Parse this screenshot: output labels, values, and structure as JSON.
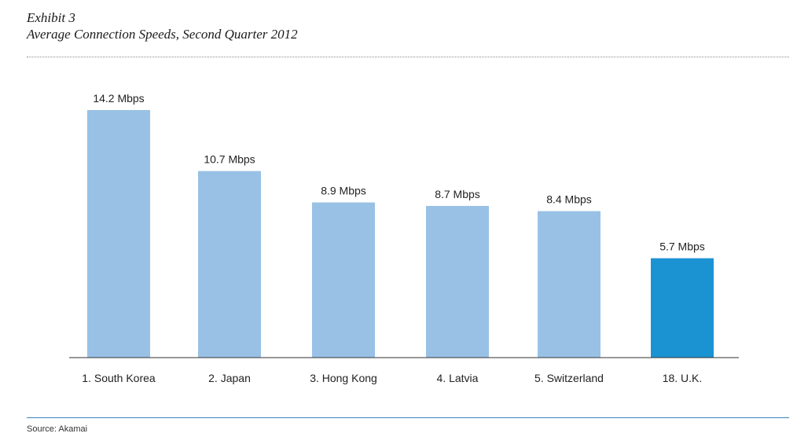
{
  "header": {
    "exhibit": "Exhibit 3",
    "title": "Average Connection Speeds, Second Quarter 2012"
  },
  "footer": {
    "source": "Source: Akamai"
  },
  "colors": {
    "default_bar": "#99c1e6",
    "highlight_bar": "#1b93d2",
    "axis": "#333333"
  },
  "chart_data": {
    "type": "bar",
    "title": "Average Connection Speeds, Second Quarter 2012",
    "xlabel": "",
    "ylabel": "",
    "unit": "Mbps",
    "categories": [
      "1. South Korea",
      "2. Japan",
      "3. Hong Kong",
      "4. Latvia",
      "5. Switzerland",
      "18. U.K."
    ],
    "values": [
      14.2,
      10.7,
      8.9,
      8.7,
      8.4,
      5.7
    ],
    "value_labels": [
      "14.2 Mbps",
      "10.7 Mbps",
      "8.9 Mbps",
      "8.7 Mbps",
      "8.4 Mbps",
      "5.7 Mbps"
    ],
    "highlighted": [
      "18. U.K."
    ],
    "ylim": [
      0,
      14.2
    ],
    "grid": false,
    "legend": "none"
  }
}
